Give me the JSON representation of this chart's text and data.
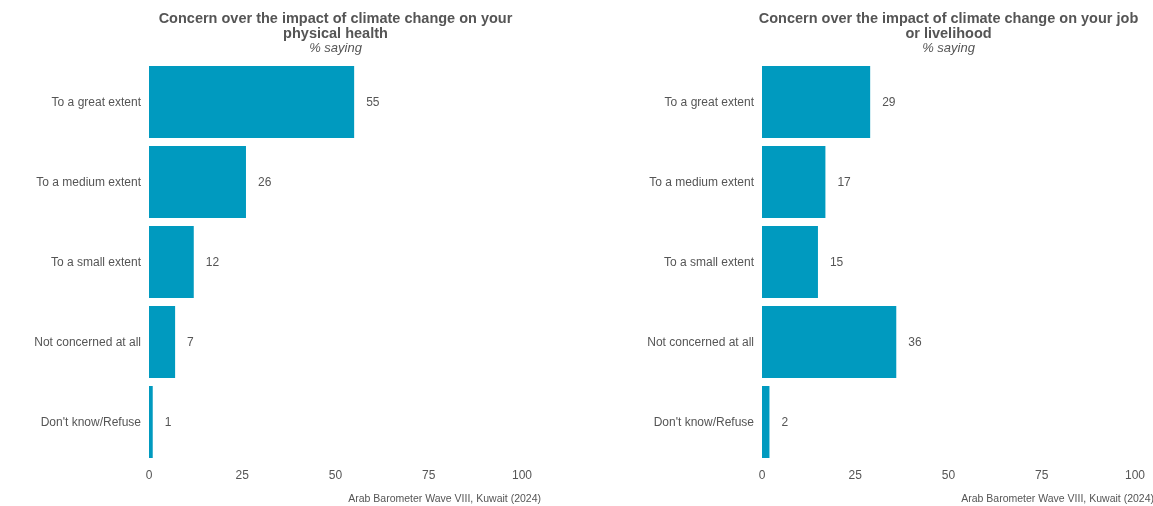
{
  "chart_data": [
    {
      "type": "bar",
      "orientation": "horizontal",
      "title": "Concern over the impact of climate change on your physical health",
      "subtitle": "% saying",
      "categories": [
        "To a great extent",
        "To a medium extent",
        "To a small extent",
        "Not concerned at all",
        "Don't know/Refuse"
      ],
      "values": [
        55,
        26,
        12,
        7,
        1
      ],
      "color": "#009abf",
      "xlim": [
        0,
        100
      ],
      "xticks": [
        0,
        25,
        50,
        75,
        100
      ],
      "grid": false,
      "legend": false,
      "data_labels": true,
      "annotations": [
        "Arab Barometer Wave VIII, Kuwait (2024)"
      ]
    },
    {
      "type": "bar",
      "orientation": "horizontal",
      "title": "Concern over the impact of climate change on your job or livelihood",
      "subtitle": "% saying",
      "categories": [
        "To a great extent",
        "To a medium extent",
        "To a small extent",
        "Not concerned at all",
        "Don't know/Refuse"
      ],
      "values": [
        29,
        17,
        15,
        36,
        2
      ],
      "color": "#009abf",
      "xlim": [
        0,
        100
      ],
      "xticks": [
        0,
        25,
        50,
        75,
        100
      ],
      "grid": false,
      "legend": false,
      "data_labels": true,
      "annotations": [
        "Arab Barometer Wave VIII, Kuwait (2024)"
      ]
    }
  ]
}
